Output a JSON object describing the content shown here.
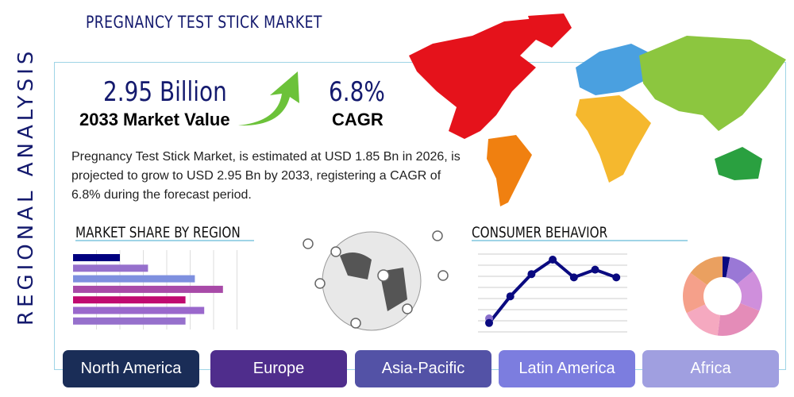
{
  "title": "PREGNANCY TEST STICK MARKET",
  "side_label": "REGIONAL ANALYSIS",
  "market_value": {
    "value": "2.95 Billion",
    "label": "2033 Market Value"
  },
  "cagr": {
    "value": "6.8%",
    "label": "CAGR"
  },
  "description": "Pregnancy Test Stick Market, is estimated at USD 1.85 Bn in 2026, is projected to grow to USD 2.95 Bn by 2033, registering a CAGR of 6.8% during the forecast period.",
  "sections": {
    "market_share": "MARKET SHARE BY REGION",
    "consumer": "CONSUMER BEHAVIOR"
  },
  "regions": [
    {
      "label": "North America",
      "color": "#1a2d57"
    },
    {
      "label": "Europe",
      "color": "#4f2d8c"
    },
    {
      "label": "Asia-Pacific",
      "color": "#5352a6"
    },
    {
      "label": "Latin America",
      "color": "#7c7ddf"
    },
    {
      "label": "Africa",
      "color": "#a09fe0"
    }
  ],
  "chart_data": [
    {
      "type": "bar",
      "orientation": "horizontal",
      "values": [
        2.0,
        3.2,
        5.2,
        6.4,
        4.8,
        5.6,
        4.8
      ],
      "colors": [
        "#00007f",
        "#9670cc",
        "#7e90df",
        "#a84aa8",
        "#c00a70",
        "#9a68cc",
        "#9670cc"
      ],
      "xlim": [
        0,
        7
      ],
      "grid": true
    },
    {
      "type": "line",
      "values": [
        0.8,
        3.2,
        5.2,
        6.5,
        4.9,
        5.6,
        4.9
      ],
      "ylim": [
        0,
        7
      ],
      "grid": true,
      "color": "#0a0a80"
    },
    {
      "type": "pie",
      "donut": true,
      "values": [
        3,
        11,
        17,
        21,
        16,
        17,
        15
      ],
      "colors": [
        "#0a0a80",
        "#9a78d6",
        "#cf8fdc",
        "#e48cb8",
        "#f5a9c0",
        "#f5a08a",
        "#eaa060"
      ]
    }
  ],
  "map_colors": {
    "north_america": "#e5121b",
    "south_america": "#f08010",
    "europe": "#4aa0e0",
    "asia": "#8cc63f",
    "africa": "#f5b82e",
    "oceania": "#2aa040",
    "greenland": "#e5121b"
  }
}
